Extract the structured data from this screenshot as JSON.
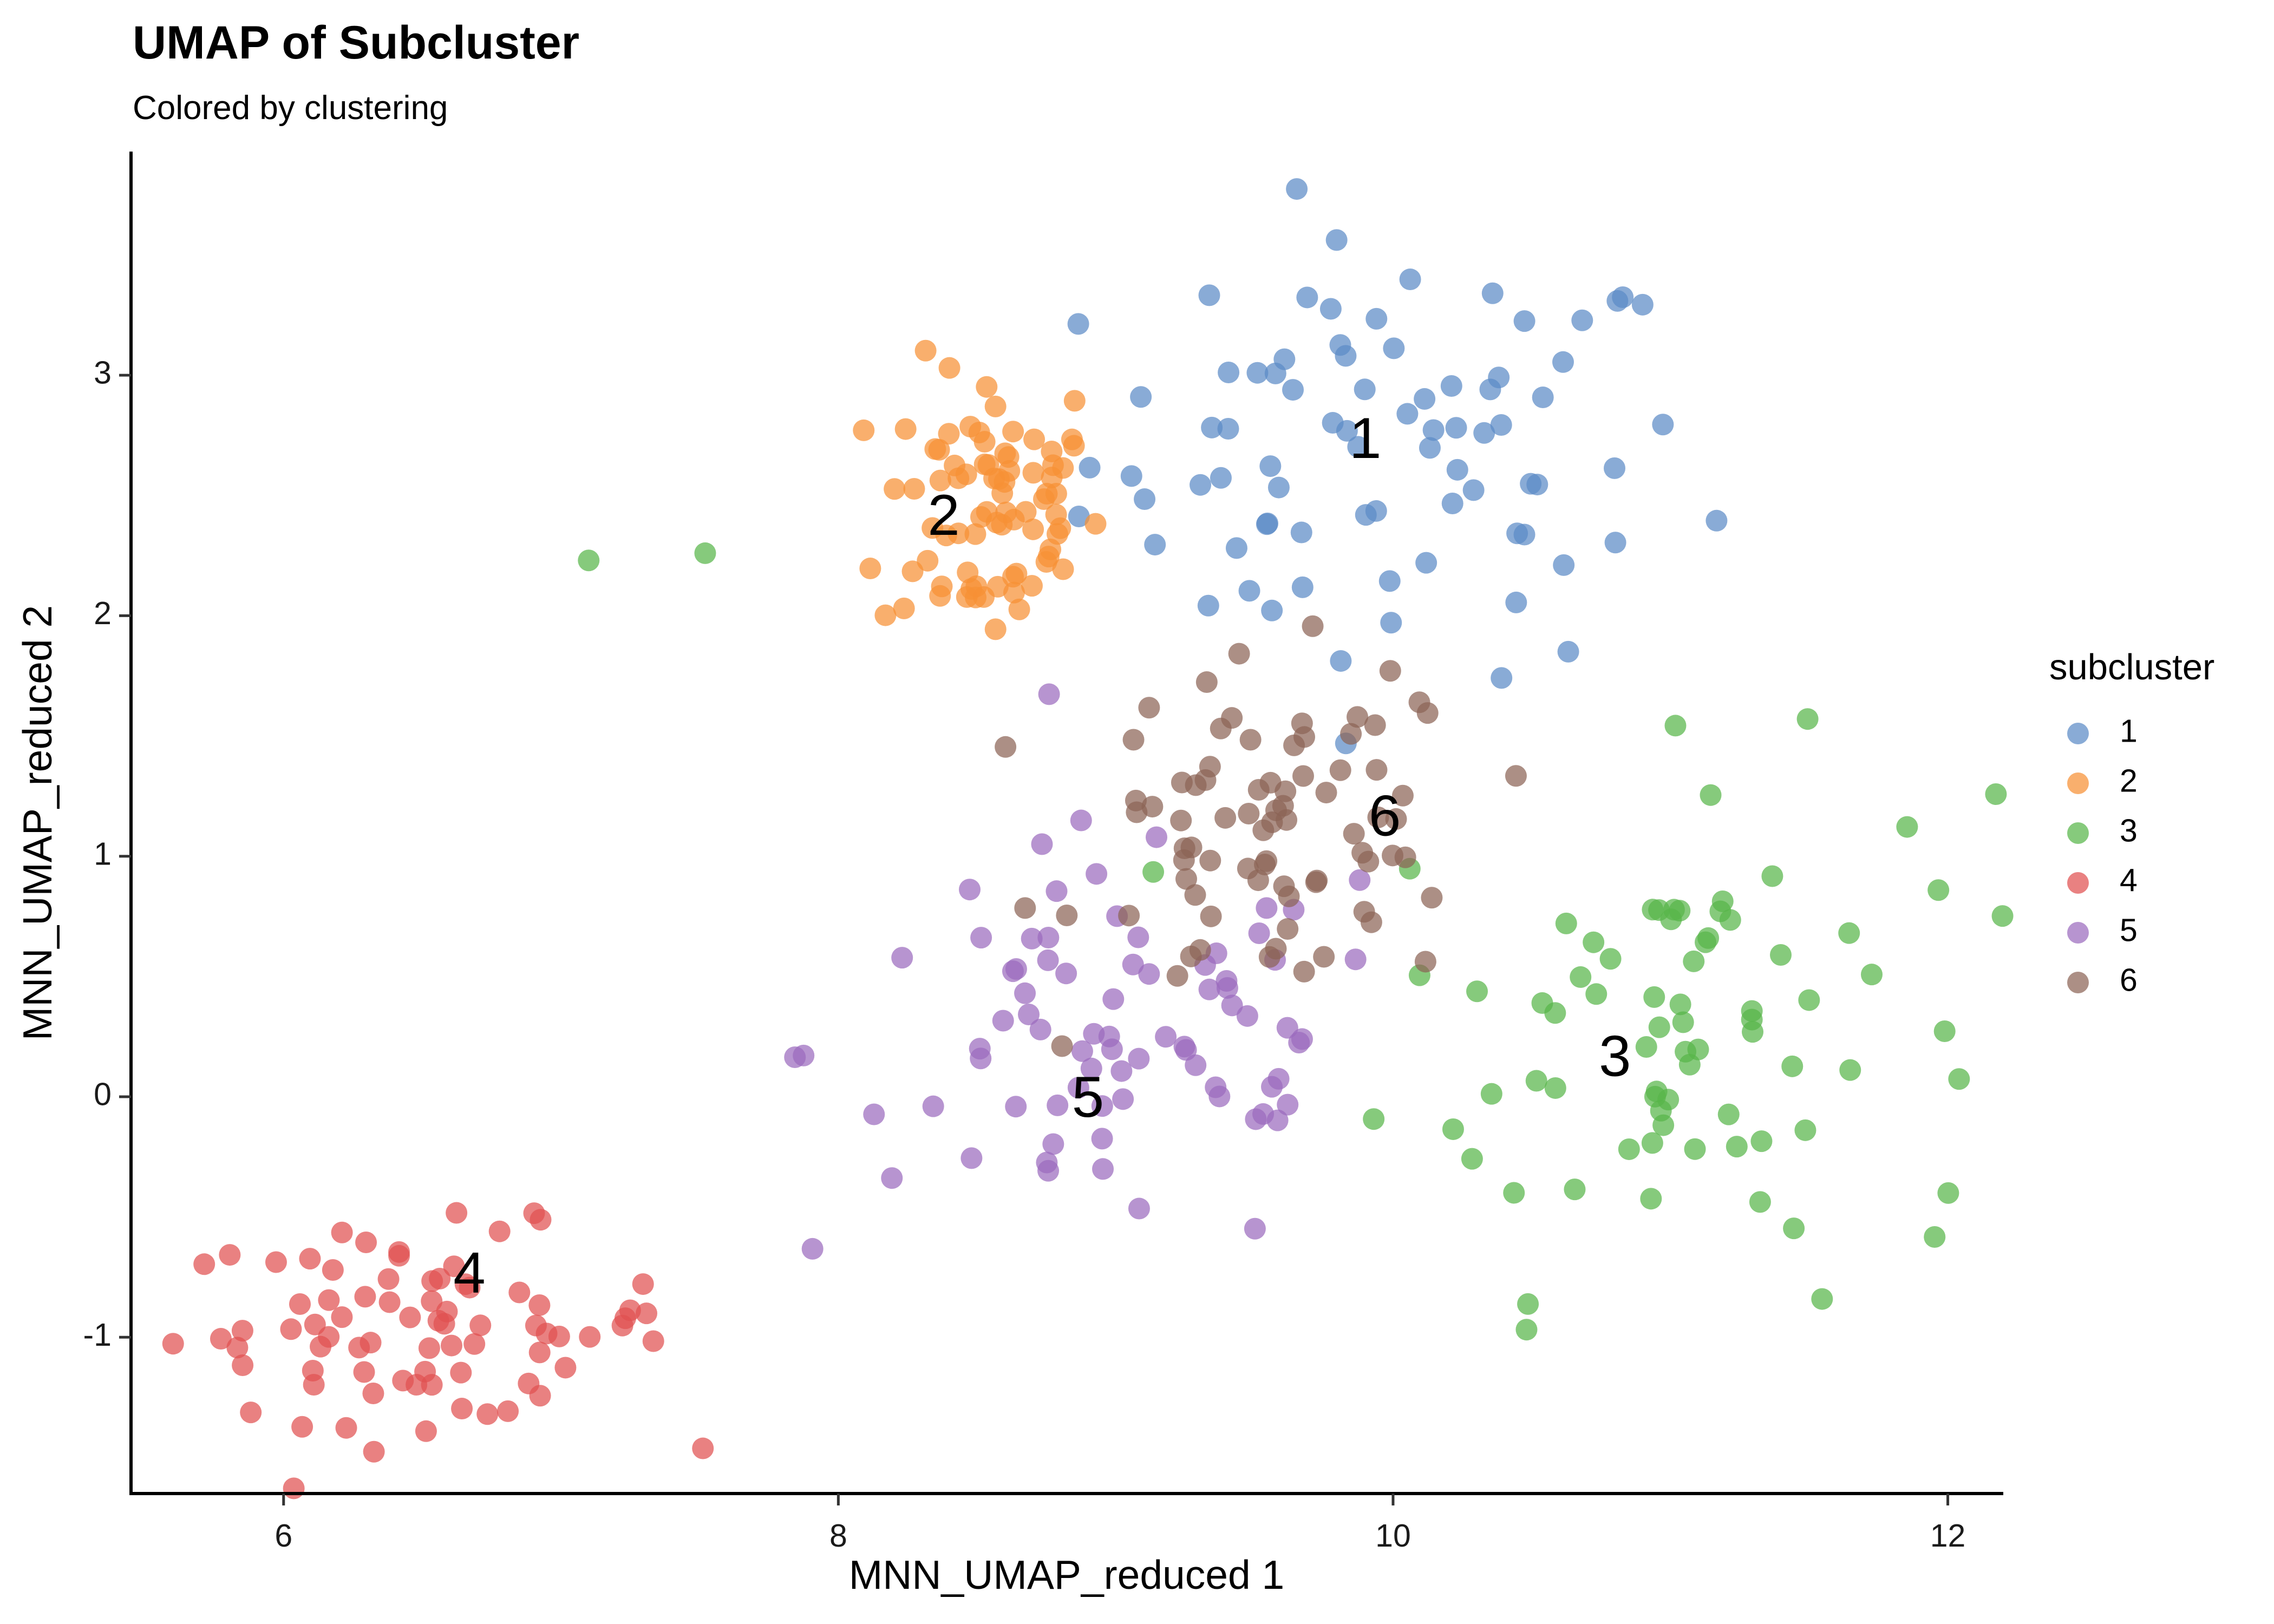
{
  "chart_data": {
    "type": "scatter",
    "title": "UMAP of Subcluster",
    "subtitle": "Colored by clustering",
    "xlabel": "MNN_UMAP_reduced 1",
    "ylabel": "MNN_UMAP_reduced 2",
    "xlim": [
      5.45,
      12.2
    ],
    "ylim": [
      -1.65,
      3.93
    ],
    "x_ticks": [
      6,
      8,
      10,
      12
    ],
    "x_tick_labels": [
      "6",
      "8",
      "10",
      "12"
    ],
    "y_ticks": [
      -1,
      0,
      1,
      2,
      3
    ],
    "y_tick_labels": [
      "-1",
      "0",
      "1",
      "2",
      "3"
    ],
    "grid": false,
    "legend": {
      "title": "subcluster",
      "placement": "right",
      "entries": [
        "1",
        "2",
        "3",
        "4",
        "5",
        "6"
      ]
    },
    "series": [
      {
        "name": "1",
        "color": "#5B8AC6",
        "center": [
          10.0,
          2.65
        ],
        "spread": [
          0.55,
          0.45
        ],
        "label_position": [
          9.9,
          2.72
        ]
      },
      {
        "name": "2",
        "color": "#F69035",
        "center": [
          8.55,
          2.45
        ],
        "spread": [
          0.2,
          0.3
        ],
        "label_position": [
          8.38,
          2.4
        ]
      },
      {
        "name": "3",
        "color": "#58B649",
        "center": [
          11.05,
          0.3
        ],
        "spread": [
          0.55,
          0.55
        ],
        "label_position": [
          10.8,
          0.15
        ]
      },
      {
        "name": "4",
        "color": "#E05050",
        "center": [
          6.5,
          -0.95
        ],
        "spread": [
          0.45,
          0.2
        ],
        "label_position": [
          6.67,
          -0.75
        ]
      },
      {
        "name": "5",
        "color": "#9B6BBE",
        "center": [
          9.0,
          0.2
        ],
        "spread": [
          0.55,
          0.45
        ],
        "label_position": [
          8.9,
          -0.02
        ]
      },
      {
        "name": "6",
        "color": "#8C6456",
        "center": [
          9.6,
          1.1
        ],
        "spread": [
          0.35,
          0.35
        ],
        "label_position": [
          9.97,
          1.15
        ]
      }
    ],
    "outlier_points": [
      {
        "series": "3",
        "x": 7.1,
        "y": 2.23
      },
      {
        "series": "3",
        "x": 7.52,
        "y": 2.26
      }
    ]
  }
}
